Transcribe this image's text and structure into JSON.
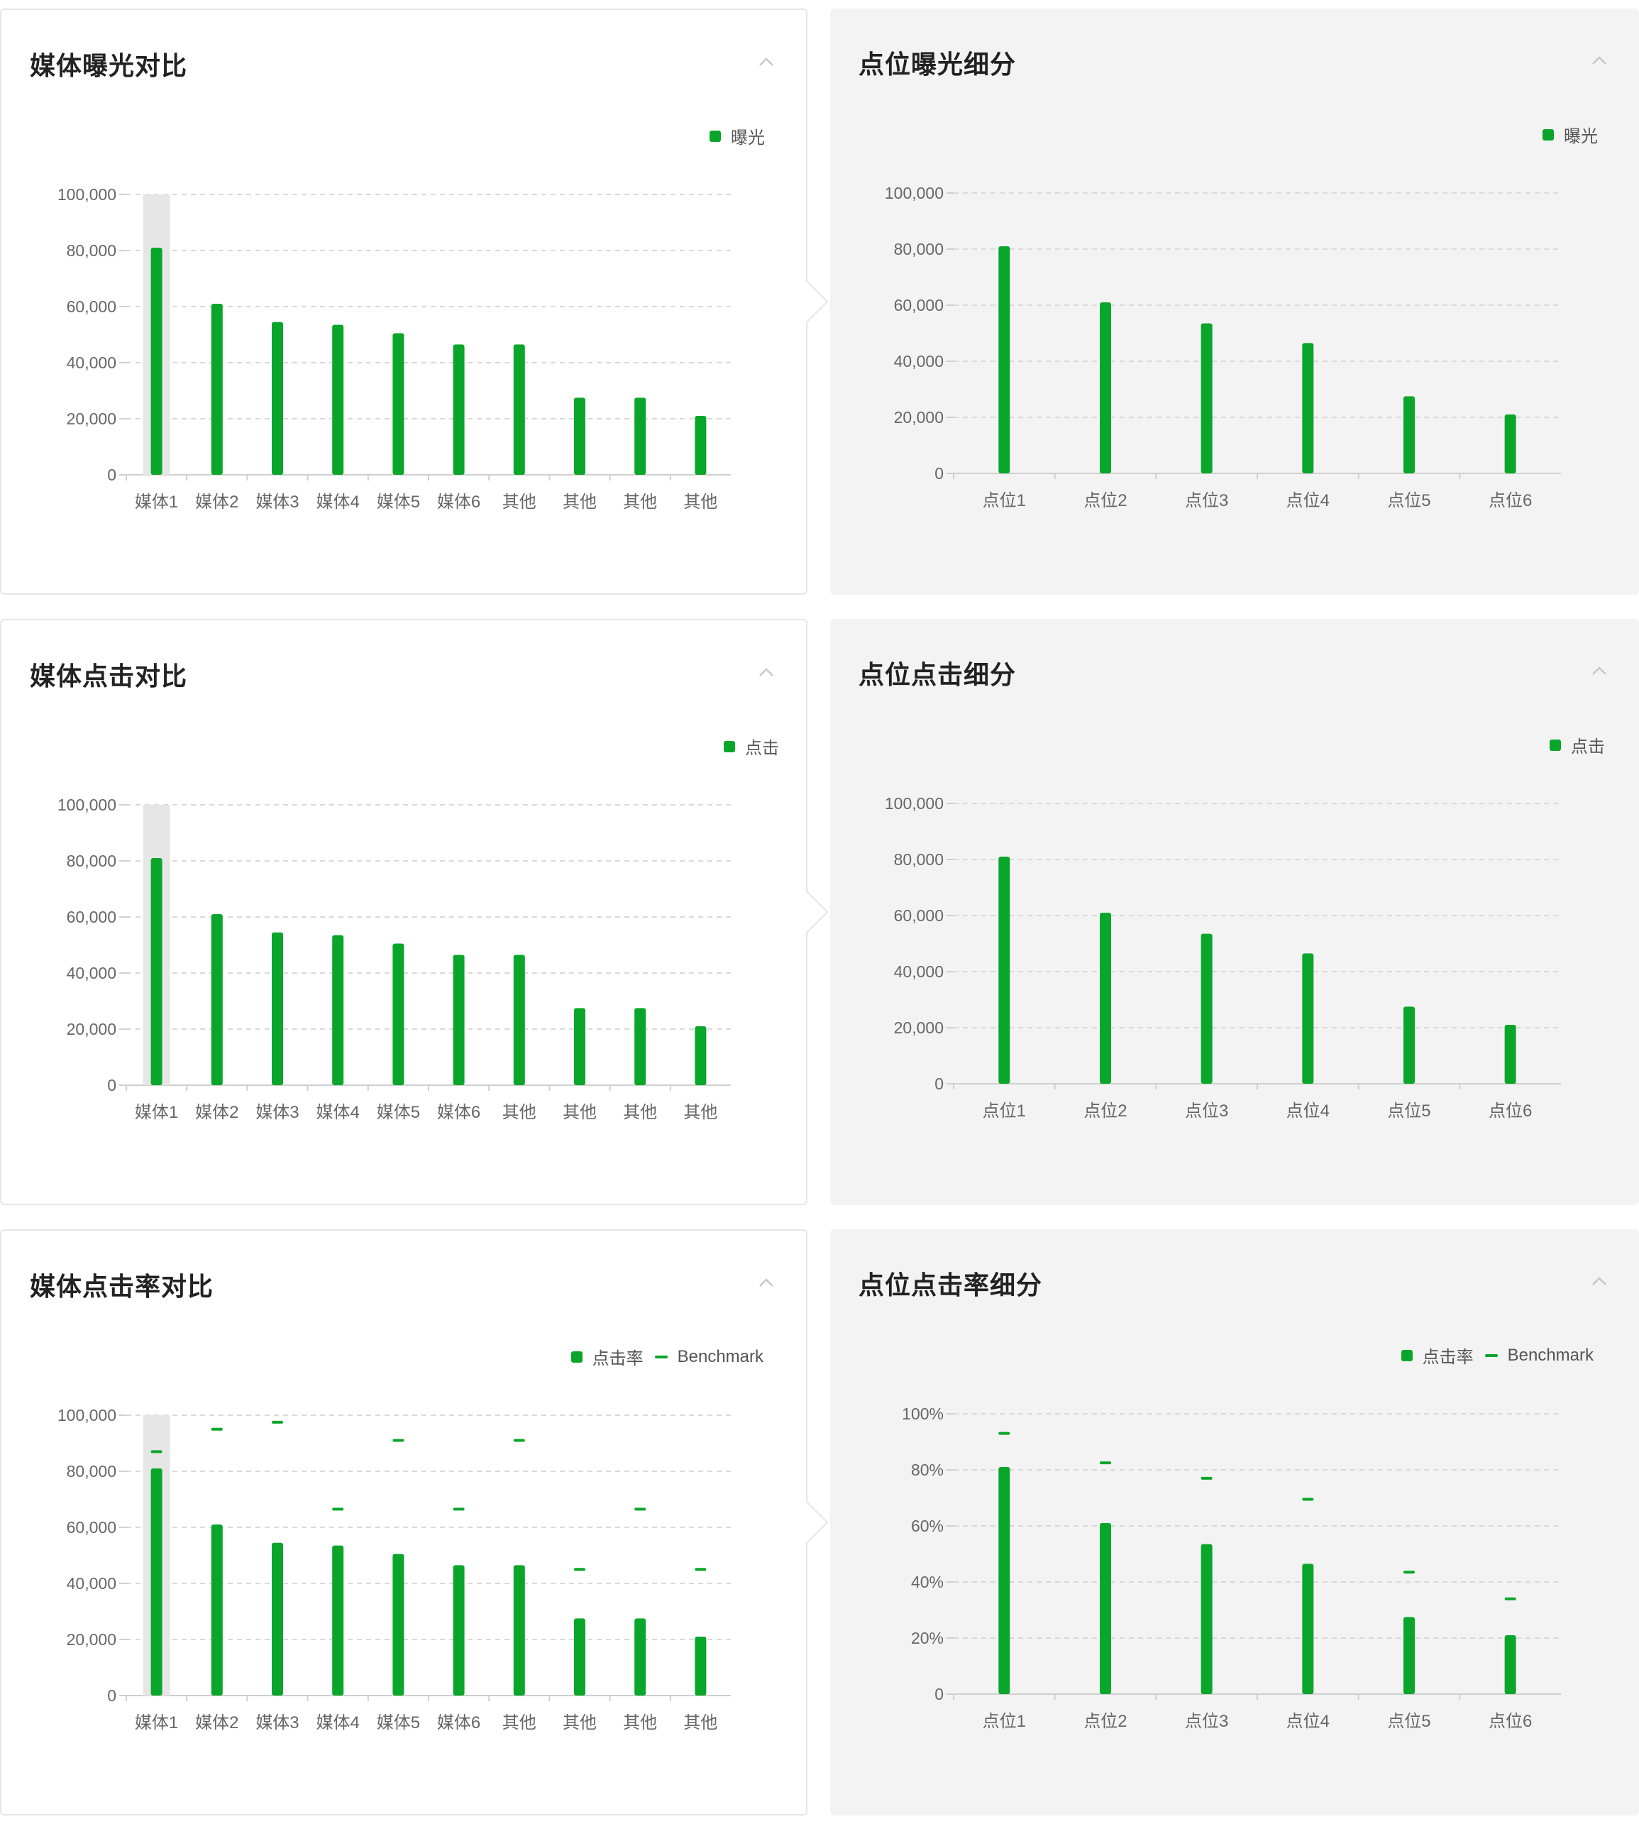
{
  "colors": {
    "bar": "#0aa62b",
    "highlight": "#e6e6e6",
    "grid": "#d9d9d9",
    "axis": "#cfcfcf",
    "tick": "#666666"
  },
  "icons": {
    "collapse": "chevron-up-icon"
  },
  "panels": [
    {
      "id": "media-exposure",
      "title": "媒体曝光对比",
      "legend": [
        {
          "type": "square",
          "label": "曝光"
        }
      ],
      "chart_data": {
        "type": "bar",
        "categories": [
          "媒体1",
          "媒体2",
          "媒体3",
          "媒体4",
          "媒体5",
          "媒体6",
          "其他",
          "其他",
          "其他",
          "其他"
        ],
        "series": [
          {
            "name": "曝光",
            "values": [
              81000,
              61000,
              54500,
              53500,
              50500,
              46500,
              46500,
              27500,
              27500,
              21000
            ]
          }
        ],
        "ylim": [
          0,
          100000
        ],
        "yticks": [
          "0",
          "20,000",
          "40,000",
          "60,000",
          "80,000",
          "100,000"
        ],
        "highlight_index": 0,
        "grid": true
      }
    },
    {
      "id": "position-exposure",
      "title": "点位曝光细分",
      "legend": [
        {
          "type": "square",
          "label": "曝光"
        }
      ],
      "chart_data": {
        "type": "bar",
        "categories": [
          "点位1",
          "点位2",
          "点位3",
          "点位4",
          "点位5",
          "点位6"
        ],
        "series": [
          {
            "name": "曝光",
            "values": [
              81000,
              61000,
              53500,
              46500,
              27500,
              21000
            ]
          }
        ],
        "ylim": [
          0,
          100000
        ],
        "yticks": [
          "0",
          "20,000",
          "40,000",
          "60,000",
          "80,000",
          "100,000"
        ],
        "grid": true
      }
    },
    {
      "id": "media-click",
      "title": "媒体点击对比",
      "legend": [
        {
          "type": "square",
          "label": "点击"
        }
      ],
      "chart_data": {
        "type": "bar",
        "categories": [
          "媒体1",
          "媒体2",
          "媒体3",
          "媒体4",
          "媒体5",
          "媒体6",
          "其他",
          "其他",
          "其他",
          "其他"
        ],
        "series": [
          {
            "name": "点击",
            "values": [
              81000,
              61000,
              54500,
              53500,
              50500,
              46500,
              46500,
              27500,
              27500,
              21000
            ]
          }
        ],
        "ylim": [
          0,
          100000
        ],
        "yticks": [
          "0",
          "20,000",
          "40,000",
          "60,000",
          "80,000",
          "100,000"
        ],
        "highlight_index": 0,
        "grid": true
      }
    },
    {
      "id": "position-click",
      "title": "点位点击细分",
      "legend": [
        {
          "type": "square",
          "label": "点击"
        }
      ],
      "chart_data": {
        "type": "bar",
        "categories": [
          "点位1",
          "点位2",
          "点位3",
          "点位4",
          "点位5",
          "点位6"
        ],
        "series": [
          {
            "name": "点击",
            "values": [
              81000,
              61000,
              53500,
              46500,
              27500,
              21000
            ]
          }
        ],
        "ylim": [
          0,
          100000
        ],
        "yticks": [
          "0",
          "20,000",
          "40,000",
          "60,000",
          "80,000",
          "100,000"
        ],
        "grid": true
      }
    },
    {
      "id": "media-ctr",
      "title": "媒体点击率对比",
      "legend": [
        {
          "type": "square",
          "label": "点击率"
        },
        {
          "type": "line",
          "label": "Benchmark"
        }
      ],
      "chart_data": {
        "type": "bar",
        "categories": [
          "媒体1",
          "媒体2",
          "媒体3",
          "媒体4",
          "媒体5",
          "媒体6",
          "其他",
          "其他",
          "其他",
          "其他"
        ],
        "series": [
          {
            "name": "点击率",
            "values": [
              81000,
              61000,
              54500,
              53500,
              50500,
              46500,
              46500,
              27500,
              27500,
              21000
            ]
          },
          {
            "name": "Benchmark",
            "values": [
              87000,
              95000,
              97500,
              66500,
              91000,
              66500,
              91000,
              45000,
              66500,
              45000
            ]
          }
        ],
        "ylim": [
          0,
          100000
        ],
        "yticks": [
          "0",
          "20,000",
          "40,000",
          "60,000",
          "80,000",
          "100,000"
        ],
        "highlight_index": 0,
        "grid": true
      }
    },
    {
      "id": "position-ctr",
      "title": "点位点击率细分",
      "legend": [
        {
          "type": "square",
          "label": "点击率"
        },
        {
          "type": "line",
          "label": "Benchmark"
        }
      ],
      "chart_data": {
        "type": "bar",
        "categories": [
          "点位1",
          "点位2",
          "点位3",
          "点位4",
          "点位5",
          "点位6"
        ],
        "series": [
          {
            "name": "点击率",
            "values": [
              81,
              61,
              53.5,
              46.5,
              27.5,
              21
            ]
          },
          {
            "name": "Benchmark",
            "values": [
              93,
              82.5,
              77,
              69.5,
              43.5,
              34
            ]
          }
        ],
        "ylim": [
          0,
          100
        ],
        "yticks": [
          "0",
          "20%",
          "40%",
          "60%",
          "80%",
          "100%"
        ],
        "grid": true
      }
    }
  ]
}
